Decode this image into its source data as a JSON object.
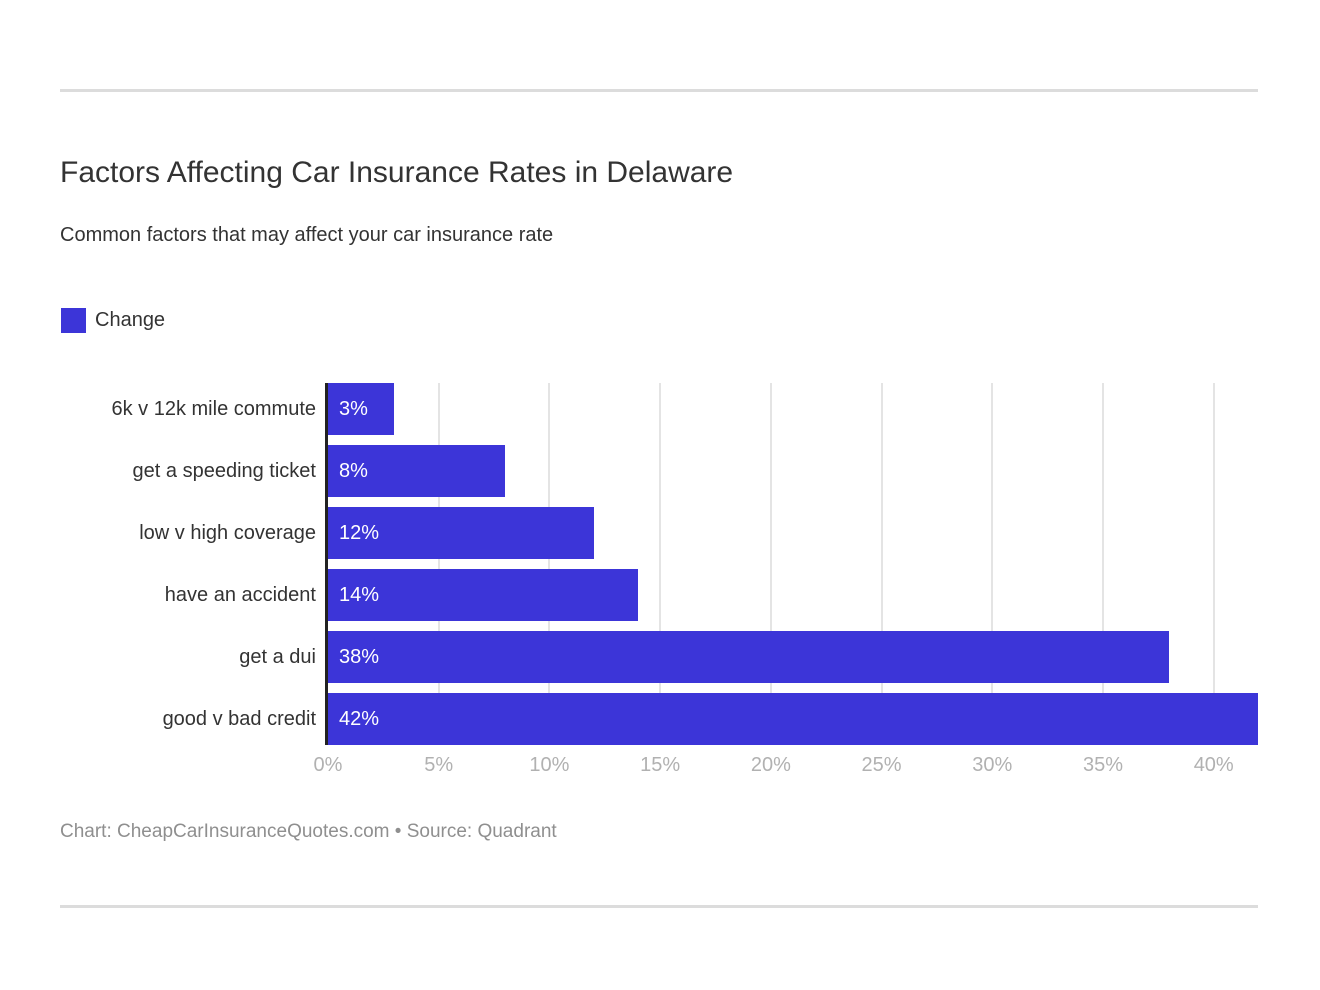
{
  "chart_data": {
    "type": "bar",
    "orientation": "horizontal",
    "title": "Factors Affecting Car Insurance Rates in Delaware",
    "subtitle": "Common factors that may affect your car insurance rate",
    "series_name": "Change",
    "legend_position": "top-left",
    "categories": [
      "6k v 12k mile commute",
      "get a speeding ticket",
      "low v high coverage",
      "have an accident",
      "get a dui",
      "good v bad credit"
    ],
    "values": [
      3,
      8,
      12,
      14,
      38,
      42
    ],
    "value_labels": [
      "3%",
      "8%",
      "12%",
      "14%",
      "38%",
      "42%"
    ],
    "xlabel": "",
    "ylabel": "",
    "xlim": [
      0,
      42
    ],
    "grid": true,
    "x_ticks": [
      {
        "value": 0,
        "label": "0%"
      },
      {
        "value": 5,
        "label": "5%"
      },
      {
        "value": 10,
        "label": "10%"
      },
      {
        "value": 15,
        "label": "15%"
      },
      {
        "value": 20,
        "label": "20%"
      },
      {
        "value": 25,
        "label": "25%"
      },
      {
        "value": 30,
        "label": "30%"
      },
      {
        "value": 35,
        "label": "35%"
      },
      {
        "value": 40,
        "label": "40%"
      }
    ]
  },
  "footer": {
    "credit": "Chart: CheapCarInsuranceQuotes.com • Source: Quadrant"
  },
  "colors": {
    "accent": "#3c35d8",
    "text": "#333333",
    "tick": "#b1b1b1",
    "grid": "#e4e4e4",
    "axis": "#222222",
    "rule": "#dcdcdc",
    "footerText": "#8f8f8f",
    "valueText": "#ffffff",
    "background": "#ffffff"
  }
}
